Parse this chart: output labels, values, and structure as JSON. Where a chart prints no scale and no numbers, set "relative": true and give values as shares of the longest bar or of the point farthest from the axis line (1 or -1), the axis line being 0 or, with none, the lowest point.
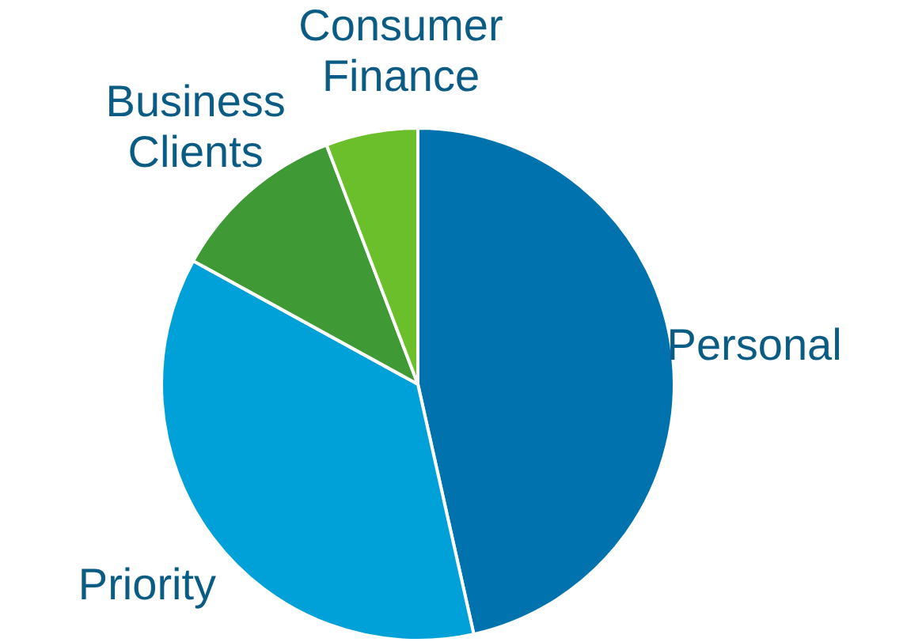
{
  "chart_data": {
    "type": "pie",
    "relative": true,
    "categories": [
      "Personal",
      "Priority",
      "Business Clients",
      "Consumer Finance"
    ],
    "values": [
      46.5,
      36.5,
      11.2,
      5.8
    ],
    "colors": [
      "#0072ae",
      "#00a0d8",
      "#3f9a35",
      "#6abf2a"
    ],
    "legend": false
  }
}
